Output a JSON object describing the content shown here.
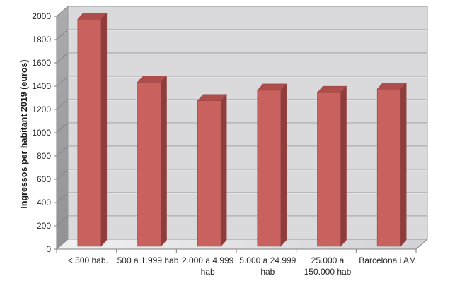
{
  "chart_data": {
    "type": "bar",
    "style": "3d-column",
    "title": "",
    "xlabel": "",
    "ylabel": "Ingressos per habitant 2019 (euros)",
    "categories": [
      "< 500 hab.",
      "500 a 1.999 hab",
      "2.000 a 4.999 hab",
      "5.000 a 24.999 hab",
      "25.000 a 150.000 hab",
      "Barcelona i AM"
    ],
    "category_label_lines": [
      [
        "< 500 hab."
      ],
      [
        "500 a 1.999 hab"
      ],
      [
        "2.000 a 4.999",
        "hab"
      ],
      [
        "5.000 a 24.999",
        "hab"
      ],
      [
        "25.000 a",
        "150.000 hab"
      ],
      [
        "Barcelona i AM"
      ]
    ],
    "values": [
      1950,
      1410,
      1250,
      1340,
      1320,
      1350
    ],
    "ylim": [
      0,
      2000
    ],
    "ytick_step": 200,
    "ytick_labels": [
      "0",
      "200",
      "400",
      "600",
      "800",
      "1000",
      "1200",
      "1400",
      "1600",
      "1800",
      "2000"
    ],
    "grid": true,
    "legend": null,
    "colors": {
      "bar_front": "#C9625F",
      "bar_top": "#AE4E4C",
      "bar_side": "#8C3D3C",
      "bar_outline": "#9A4341",
      "wall_back": "#DADADD",
      "wall_left_top": "#ABABB0",
      "wall_left_bottom": "#919196",
      "floor_near": "#F1F1F3",
      "floor_far": "#D2D2D6",
      "gridline": "#98989C",
      "gridline_highlight": "#EFEFF1",
      "wall_connector": "#85858A",
      "axis_line": "#7F7F7F",
      "text": "#262626"
    }
  }
}
